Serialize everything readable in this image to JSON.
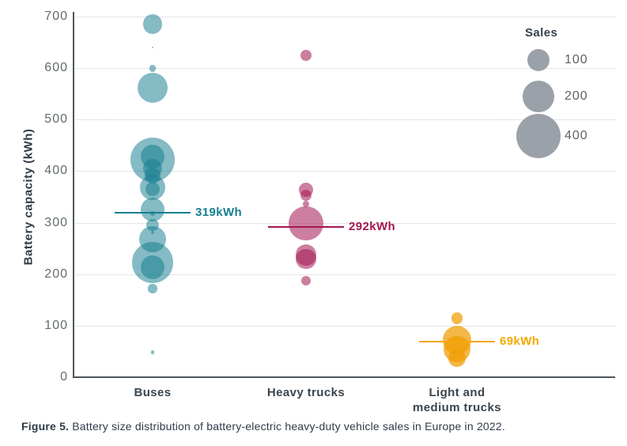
{
  "figure": {
    "caption_bold": "Figure 5.",
    "caption_text": " Battery size distribution of battery-electric heavy-duty vehicle sales in Europe in 2022."
  },
  "chart_data": {
    "type": "scatter",
    "subtype": "bubble-strip-plot",
    "title": "",
    "xlabel": "",
    "ylabel": "Battery capacity (kWh)",
    "ylim": [
      0,
      700
    ],
    "yticks": [
      0,
      100,
      200,
      300,
      400,
      500,
      600,
      700
    ],
    "grid": "horizontal-dotted",
    "categories": [
      "Buses",
      "Heavy trucks",
      "Light and medium trucks"
    ],
    "size_legend": {
      "title": "Sales",
      "position": "top-right",
      "bubble_color": "#9BA1A9",
      "items": [
        {
          "label": "100",
          "sales": 100
        },
        {
          "label": "200",
          "sales": 200
        },
        {
          "label": "400",
          "sales": 400
        }
      ]
    },
    "series": [
      {
        "name": "Buses",
        "axis_label": "Buses",
        "color": "#147D8E",
        "label_color": "#16808F",
        "fill_alpha": 0.52,
        "mean_kwh": 319,
        "mean_label": "319kWh",
        "points": [
          {
            "kwh": 685,
            "sales": 77
          },
          {
            "kwh": 640,
            "sales": 1
          },
          {
            "kwh": 600,
            "sales": 10
          },
          {
            "kwh": 562,
            "sales": 185
          },
          {
            "kwh": 428,
            "sales": 115
          },
          {
            "kwh": 422,
            "sales": 400
          },
          {
            "kwh": 405,
            "sales": 73
          },
          {
            "kwh": 392,
            "sales": 51
          },
          {
            "kwh": 369,
            "sales": 130
          },
          {
            "kwh": 366,
            "sales": 41
          },
          {
            "kwh": 326,
            "sales": 115
          },
          {
            "kwh": 318,
            "sales": 5
          },
          {
            "kwh": 295,
            "sales": 29
          },
          {
            "kwh": 281,
            "sales": 3
          },
          {
            "kwh": 268,
            "sales": 140
          },
          {
            "kwh": 223,
            "sales": 340
          },
          {
            "kwh": 214,
            "sales": 115
          },
          {
            "kwh": 172,
            "sales": 16
          },
          {
            "kwh": 48,
            "sales": 3
          }
        ]
      },
      {
        "name": "Heavy trucks",
        "axis_label": "Heavy trucks",
        "color": "#A31652",
        "label_color": "#A31652",
        "fill_alpha": 0.55,
        "mean_kwh": 292,
        "mean_label": "292kWh",
        "points": [
          {
            "kwh": 625,
            "sales": 27
          },
          {
            "kwh": 364,
            "sales": 44
          },
          {
            "kwh": 353,
            "sales": 27
          },
          {
            "kwh": 336,
            "sales": 8
          },
          {
            "kwh": 299,
            "sales": 240
          },
          {
            "kwh": 237,
            "sales": 90
          },
          {
            "kwh": 229,
            "sales": 82
          },
          {
            "kwh": 187,
            "sales": 18
          }
        ]
      },
      {
        "name": "Light and medium trucks",
        "axis_label": "Light and\nmedium trucks",
        "color": "#F09C00",
        "label_color": "#F5A800",
        "fill_alpha": 0.72,
        "mean_kwh": 69,
        "mean_label": "69kWh",
        "points": [
          {
            "kwh": 114,
            "sales": 27
          },
          {
            "kwh": 72,
            "sales": 170
          },
          {
            "kwh": 54,
            "sales": 142
          },
          {
            "kwh": 37,
            "sales": 62
          }
        ]
      }
    ]
  }
}
